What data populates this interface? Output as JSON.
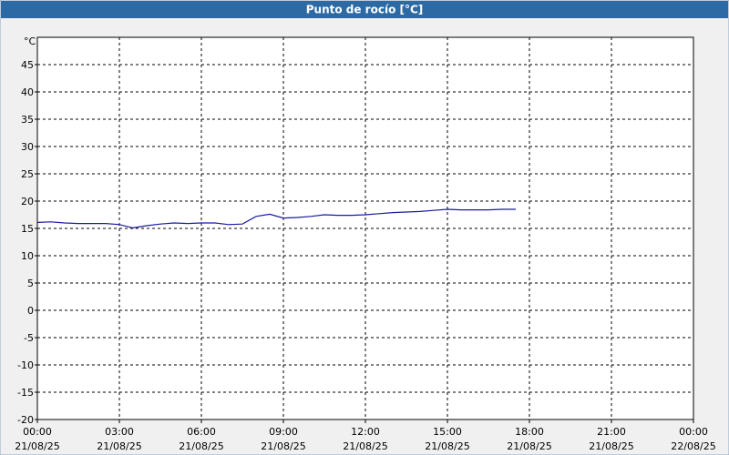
{
  "chart_data": {
    "type": "line",
    "title": "Punto de rocío [°C]",
    "y_unit": "°C",
    "x": [
      0,
      0.5,
      1,
      1.5,
      2,
      2.5,
      3,
      3.5,
      4,
      4.5,
      5,
      5.5,
      6,
      6.5,
      7,
      7.5,
      8,
      8.5,
      9,
      9.5,
      10,
      10.5,
      11,
      11.5,
      12,
      12.5,
      13,
      13.5,
      14,
      14.5,
      15,
      15.5,
      16,
      16.5,
      17,
      17.5
    ],
    "series": [
      {
        "color": "#1a1aa6",
        "values": [
          16.1,
          16.2,
          16.0,
          15.9,
          15.9,
          15.9,
          15.7,
          15.1,
          15.5,
          15.8,
          16.0,
          15.9,
          16.0,
          16.0,
          15.7,
          15.8,
          17.2,
          17.6,
          16.9,
          17.0,
          17.2,
          17.5,
          17.4,
          17.4,
          17.5,
          17.7,
          17.9,
          18.0,
          18.1,
          18.3,
          18.5,
          18.4,
          18.4,
          18.4,
          18.5,
          18.5
        ]
      }
    ],
    "xlim": [
      0,
      24
    ],
    "xticks": [
      {
        "value": 0,
        "label": [
          "00:00",
          "21/08/25"
        ]
      },
      {
        "value": 3,
        "label": [
          "03:00",
          "21/08/25"
        ]
      },
      {
        "value": 6,
        "label": [
          "06:00",
          "21/08/25"
        ]
      },
      {
        "value": 9,
        "label": [
          "09:00",
          "21/08/25"
        ]
      },
      {
        "value": 12,
        "label": [
          "12:00",
          "21/08/25"
        ]
      },
      {
        "value": 15,
        "label": [
          "15:00",
          "21/08/25"
        ]
      },
      {
        "value": 18,
        "label": [
          "18:00",
          "21/08/25"
        ]
      },
      {
        "value": 21,
        "label": [
          "21:00",
          "21/08/25"
        ]
      },
      {
        "value": 24,
        "label": [
          "00:00",
          "22/08/25"
        ]
      }
    ],
    "ylim": [
      -20,
      50
    ],
    "yticks": [
      -20,
      -15,
      -10,
      -5,
      0,
      5,
      10,
      15,
      20,
      25,
      30,
      35,
      40,
      45
    ],
    "grid": true
  }
}
